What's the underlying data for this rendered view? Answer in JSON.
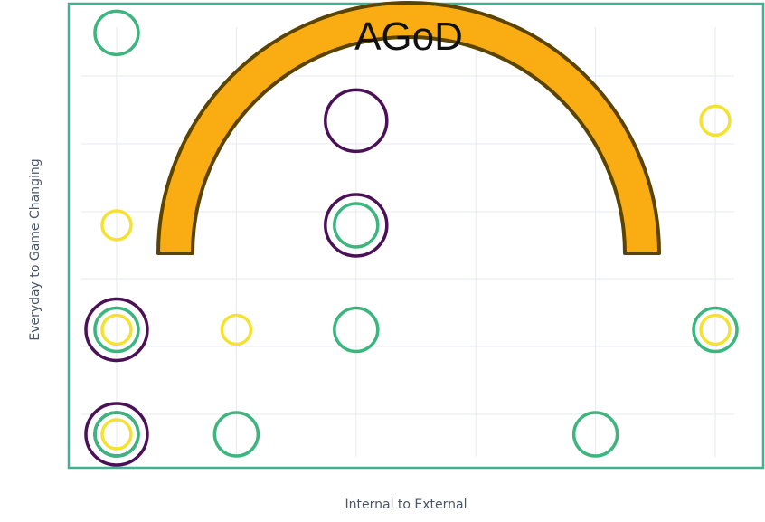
{
  "chart_data": {
    "type": "scatter",
    "title": "",
    "xlabel": "Internal to External",
    "ylabel": "Everyday to Game Changing",
    "xlim": [
      0.6,
      6.4
    ],
    "ylim": [
      0.6,
      6.15
    ],
    "grid": true,
    "tick_labels_shown": false,
    "x_grid": [
      1,
      2,
      3,
      4,
      5,
      6
    ],
    "y_grid": [
      1,
      2,
      3,
      4,
      5,
      6
    ],
    "marker": "open-circle",
    "size_levels": {
      "small": 16,
      "medium": 24,
      "large": 34
    },
    "colors": {
      "yellow": "#f5e12f",
      "green": "#3db57f",
      "purple": "#4b1157",
      "frame": "#3db390",
      "grid": "#e6e9f0"
    },
    "points": [
      {
        "x": 1,
        "y": 5.8,
        "color": "green",
        "size": "medium"
      },
      {
        "x": 3,
        "y": 4.75,
        "color": "purple",
        "size": "large"
      },
      {
        "x": 6,
        "y": 4.75,
        "color": "yellow",
        "size": "small"
      },
      {
        "x": 1,
        "y": 3.5,
        "color": "yellow",
        "size": "small"
      },
      {
        "x": 3,
        "y": 3.5,
        "color": "purple",
        "size": "large"
      },
      {
        "x": 3,
        "y": 3.5,
        "color": "green",
        "size": "medium"
      },
      {
        "x": 1,
        "y": 2.25,
        "color": "purple",
        "size": "large"
      },
      {
        "x": 1,
        "y": 2.25,
        "color": "green",
        "size": "medium"
      },
      {
        "x": 1,
        "y": 2.25,
        "color": "yellow",
        "size": "small"
      },
      {
        "x": 2,
        "y": 2.25,
        "color": "yellow",
        "size": "small"
      },
      {
        "x": 3,
        "y": 2.25,
        "color": "green",
        "size": "medium"
      },
      {
        "x": 6,
        "y": 2.25,
        "color": "green",
        "size": "medium"
      },
      {
        "x": 6,
        "y": 2.25,
        "color": "yellow",
        "size": "small"
      },
      {
        "x": 1,
        "y": 1,
        "color": "purple",
        "size": "large"
      },
      {
        "x": 1,
        "y": 1,
        "color": "purple",
        "size": "medium"
      },
      {
        "x": 1,
        "y": 1,
        "color": "green",
        "size": "medium"
      },
      {
        "x": 1,
        "y": 1,
        "color": "yellow",
        "size": "small"
      },
      {
        "x": 2,
        "y": 1,
        "color": "green",
        "size": "medium"
      },
      {
        "x": 5,
        "y": 1,
        "color": "green",
        "size": "medium"
      }
    ]
  },
  "overlay": {
    "label": "AGoD",
    "shape": "arch",
    "fill_color": "#f9ad13",
    "stroke_color": "#5b4300"
  }
}
